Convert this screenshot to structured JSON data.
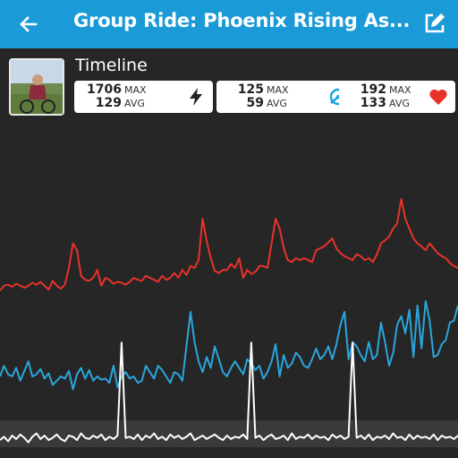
{
  "header": {
    "title": "Group Ride: Phoenix Rising As..."
  },
  "section": {
    "title": "Timeline"
  },
  "stats": [
    {
      "max": "1706",
      "max_label": "MAX",
      "avg": "129",
      "avg_label": "AVG",
      "icon": "lightning-power-icon",
      "color": "#222222"
    },
    {
      "max": "125",
      "max_label": "MAX",
      "avg": "59",
      "avg_label": "AVG",
      "icon": "speedometer-icon",
      "color": "#1aa3d9"
    },
    {
      "max": "192",
      "max_label": "MAX",
      "avg": "133",
      "avg_label": "AVG",
      "icon": "heart-icon",
      "color": "#e8322a"
    }
  ],
  "colors": {
    "appbar": "#1a9ad6",
    "background": "#262626",
    "heart_rate": "#e8322a",
    "speed": "#2aa6dc",
    "power": "#ffffff"
  },
  "chart_data": {
    "type": "line",
    "grid": false,
    "series": [
      {
        "values": [
          47,
          52,
          53,
          51,
          54,
          52,
          50,
          52,
          55,
          53,
          56,
          52,
          48,
          57,
          52,
          49,
          53,
          70,
          95,
          88,
          62,
          58,
          57,
          60,
          68,
          52,
          60,
          58,
          54,
          56,
          55,
          53,
          56,
          60,
          58,
          57,
          62,
          60,
          58,
          56,
          62,
          58,
          60,
          65,
          60,
          68,
          63,
          72,
          70,
          78,
          120,
          97,
          80,
          67,
          65,
          68,
          68,
          74,
          70,
          80,
          60,
          68,
          64,
          66,
          72,
          72,
          70,
          95,
          120,
          110,
          90,
          78,
          76,
          80,
          78,
          80,
          78,
          76,
          88,
          90,
          92,
          96,
          100,
          90,
          85,
          82,
          80,
          78,
          84,
          82,
          78,
          80,
          76,
          84,
          95,
          98,
          102,
          110,
          115,
          140,
          120,
          110,
          100,
          95,
          92,
          88,
          95,
          90,
          85,
          82,
          80,
          75,
          72,
          70
        ]
      },
      {
        "values": [
          30,
          40,
          32,
          30,
          38,
          26,
          35,
          44,
          30,
          32,
          37,
          28,
          33,
          22,
          26,
          30,
          28,
          35,
          18,
          32,
          38,
          28,
          36,
          26,
          30,
          27,
          28,
          24,
          40,
          20,
          30,
          34,
          28,
          30,
          24,
          26,
          40,
          34,
          28,
          40,
          36,
          30,
          24,
          34,
          32,
          26,
          58,
          90,
          62,
          44,
          34,
          48,
          38,
          58,
          46,
          34,
          30,
          38,
          44,
          38,
          32,
          46,
          42,
          36,
          40,
          28,
          34,
          44,
          60,
          30,
          50,
          38,
          42,
          52,
          48,
          40,
          38,
          46,
          56,
          46,
          50,
          58,
          46,
          60,
          78,
          90,
          46,
          62,
          58,
          50,
          44,
          62,
          46,
          50,
          80,
          62,
          40,
          52,
          78,
          86,
          70,
          92,
          48,
          96,
          56,
          100,
          82,
          48,
          50,
          60,
          64,
          80,
          82,
          96
        ]
      },
      {
        "values": [
          8,
          11,
          7,
          12,
          9,
          13,
          10,
          6,
          11,
          14,
          9,
          12,
          8,
          10,
          13,
          9,
          7,
          12,
          11,
          8,
          14,
          10,
          9,
          12,
          10,
          13,
          8,
          11,
          9,
          12,
          95,
          10,
          11,
          9,
          13,
          8,
          12,
          10,
          14,
          9,
          11,
          8,
          13,
          10,
          12,
          9,
          11,
          14,
          8,
          10,
          12,
          9,
          11,
          13,
          10,
          8,
          12,
          9,
          11,
          10,
          13,
          9,
          95,
          10,
          12,
          8,
          11,
          13,
          9,
          10,
          12,
          8,
          14,
          9,
          11,
          10,
          13,
          9,
          12,
          10,
          11,
          8,
          13,
          10,
          12,
          9,
          11,
          95,
          10,
          12,
          9,
          13,
          8,
          11,
          10,
          12,
          9,
          14,
          10,
          11,
          8,
          13,
          9,
          12,
          10,
          11,
          9,
          13,
          8,
          12,
          10,
          11,
          9,
          12
        ]
      }
    ]
  }
}
